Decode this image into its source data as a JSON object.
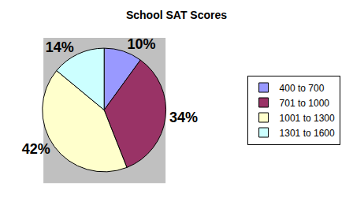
{
  "chart_data": {
    "type": "pie",
    "title": "School SAT Scores",
    "categories": [
      "400 to 700",
      "701 to 1000",
      "1001 to 1300",
      "1301 to 1600"
    ],
    "values": [
      10,
      34,
      42,
      14
    ],
    "value_labels": [
      "10%",
      "34%",
      "42%",
      "14%"
    ],
    "data_labels": true,
    "colors": [
      "#9999ff",
      "#993366",
      "#ffffcc",
      "#ccffff"
    ],
    "legend": "right"
  }
}
